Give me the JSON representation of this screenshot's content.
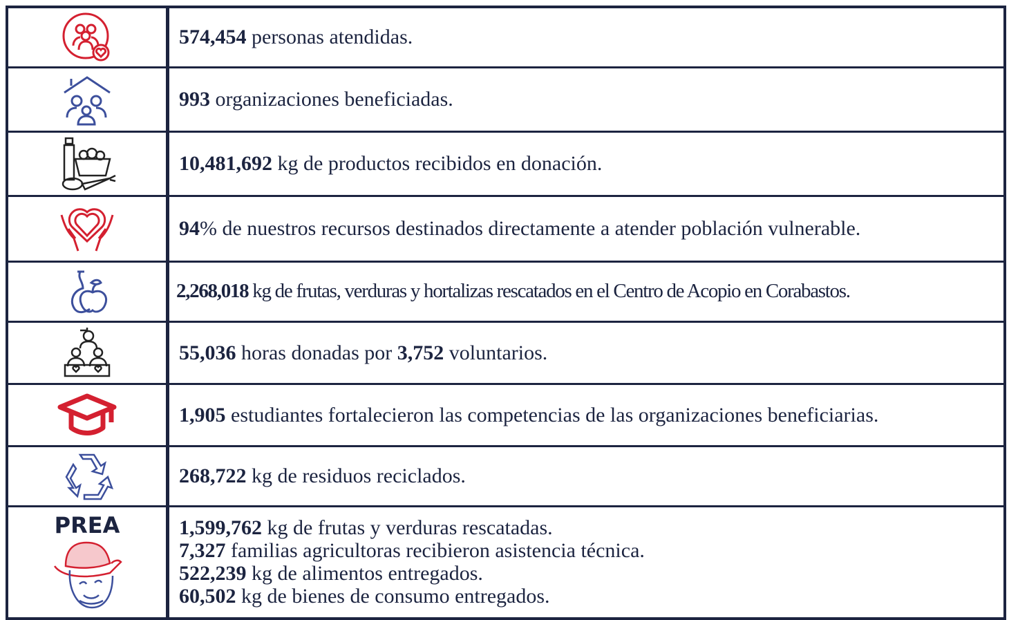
{
  "table": {
    "rows": [
      {
        "lines": [
          [
            {
              "text": "574,454",
              "bold": true
            },
            {
              "text": " personas atendidas.",
              "bold": false
            }
          ]
        ]
      },
      {
        "lines": [
          [
            {
              "text": "993",
              "bold": true
            },
            {
              "text": " organizaciones beneficiadas.",
              "bold": false
            }
          ]
        ]
      },
      {
        "lines": [
          [
            {
              "text": "10,481,692",
              "bold": true
            },
            {
              "text": " kg de productos recibidos en donación.",
              "bold": false
            }
          ]
        ]
      },
      {
        "lines": [
          [
            {
              "text": "94",
              "bold": true
            },
            {
              "text": "% de nuestros recursos destinados directamente a atender población vulnerable.",
              "bold": false
            }
          ]
        ]
      },
      {
        "condensed": true,
        "lines": [
          [
            {
              "text": "2,268,018",
              "bold": true
            },
            {
              "text": " kg de frutas, verduras y hortalizas rescatados en el Centro de Acopio en Corabastos.",
              "bold": false
            }
          ]
        ]
      },
      {
        "lines": [
          [
            {
              "text": "55,036",
              "bold": true
            },
            {
              "text": " horas donadas por ",
              "bold": false
            },
            {
              "text": "3,752",
              "bold": true
            },
            {
              "text": " voluntarios.",
              "bold": false
            }
          ]
        ]
      },
      {
        "lines": [
          [
            {
              "text": "1,905",
              "bold": true
            },
            {
              "text": " estudiantes fortalecieron las competencias de las organizaciones beneficiarias.",
              "bold": false
            }
          ]
        ]
      },
      {
        "lines": [
          [
            {
              "text": "268,722",
              "bold": true
            },
            {
              "text": " kg de residuos reciclados.",
              "bold": false
            }
          ]
        ]
      },
      {
        "icon_text": "PREA",
        "lines": [
          [
            {
              "text": "1,599,762",
              "bold": true
            },
            {
              "text": " kg de frutas y verduras rescatadas.",
              "bold": false
            }
          ],
          [
            {
              "text": "7,327",
              "bold": true
            },
            {
              "text": " familias agricultoras recibieron asistencia técnica.",
              "bold": false
            }
          ],
          [
            {
              "text": "522,239",
              "bold": true
            },
            {
              "text": " kg de alimentos entregados.",
              "bold": false
            }
          ],
          [
            {
              "text": "60,502",
              "bold": true
            },
            {
              "text": " kg de bienes de consumo entregados.",
              "bold": false
            }
          ]
        ]
      }
    ]
  }
}
